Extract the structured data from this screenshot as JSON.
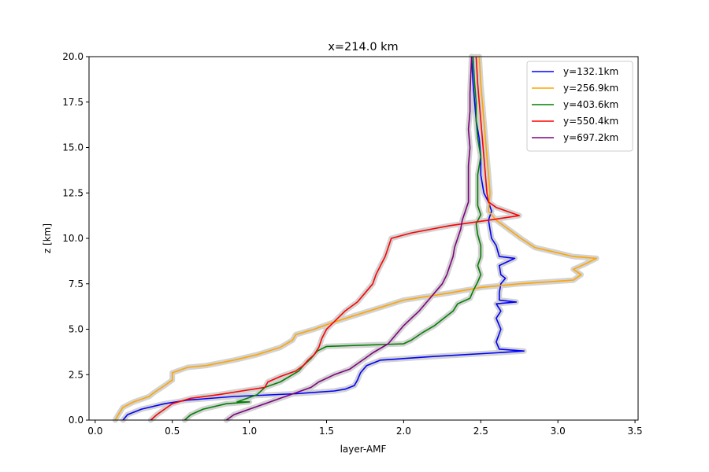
{
  "chart_data": {
    "type": "line",
    "title": "x=214.0 km",
    "xlabel": "layer-AMF",
    "ylabel": "z [km]",
    "xlim": [
      -0.04,
      3.52
    ],
    "ylim": [
      0,
      20
    ],
    "xticks": [
      0.0,
      0.5,
      1.0,
      1.5,
      2.0,
      2.5,
      3.0,
      3.5
    ],
    "xtick_labels": [
      "0.0",
      "0.5",
      "1.0",
      "1.5",
      "2.0",
      "2.5",
      "3.0",
      "3.5"
    ],
    "yticks": [
      0.0,
      2.5,
      5.0,
      7.5,
      10.0,
      12.5,
      15.0,
      17.5,
      20.0
    ],
    "ytick_labels": [
      "0.0",
      "2.5",
      "5.0",
      "7.5",
      "10.0",
      "12.5",
      "15.0",
      "17.5",
      "20.0"
    ],
    "grid": false,
    "legend_position": "top-right",
    "uncertainty_band_color": "#d3d3d3",
    "series": [
      {
        "name": "y=132.1km",
        "color": "#0000ff",
        "points": [
          [
            0.18,
            0.0
          ],
          [
            0.21,
            0.3
          ],
          [
            0.3,
            0.6
          ],
          [
            0.45,
            0.9
          ],
          [
            0.6,
            1.1
          ],
          [
            0.9,
            1.3
          ],
          [
            1.3,
            1.45
          ],
          [
            1.55,
            1.6
          ],
          [
            1.62,
            1.7
          ],
          [
            1.68,
            1.9
          ],
          [
            1.7,
            2.2
          ],
          [
            1.72,
            2.6
          ],
          [
            1.76,
            3.0
          ],
          [
            1.85,
            3.3
          ],
          [
            2.2,
            3.5
          ],
          [
            2.6,
            3.7
          ],
          [
            2.78,
            3.8
          ],
          [
            2.62,
            3.9
          ],
          [
            2.6,
            4.3
          ],
          [
            2.63,
            5.0
          ],
          [
            2.6,
            5.6
          ],
          [
            2.63,
            6.0
          ],
          [
            2.6,
            6.4
          ],
          [
            2.73,
            6.5
          ],
          [
            2.62,
            6.6
          ],
          [
            2.62,
            7.0
          ],
          [
            2.63,
            7.5
          ],
          [
            2.66,
            7.8
          ],
          [
            2.63,
            8.0
          ],
          [
            2.62,
            8.5
          ],
          [
            2.72,
            8.9
          ],
          [
            2.62,
            9.0
          ],
          [
            2.6,
            9.6
          ],
          [
            2.57,
            10.0
          ],
          [
            2.56,
            10.5
          ],
          [
            2.55,
            11.0
          ],
          [
            2.57,
            11.5
          ],
          [
            2.55,
            12.0
          ],
          [
            2.52,
            12.5
          ],
          [
            2.5,
            13.5
          ],
          [
            2.5,
            14.5
          ],
          [
            2.49,
            15.5
          ],
          [
            2.47,
            16.5
          ],
          [
            2.46,
            17.5
          ],
          [
            2.45,
            18.5
          ],
          [
            2.44,
            20.0
          ]
        ]
      },
      {
        "name": "y=256.9km",
        "color": "#ffa500",
        "points": [
          [
            0.13,
            0.0
          ],
          [
            0.15,
            0.3
          ],
          [
            0.18,
            0.7
          ],
          [
            0.25,
            1.0
          ],
          [
            0.35,
            1.3
          ],
          [
            0.38,
            1.5
          ],
          [
            0.45,
            1.9
          ],
          [
            0.5,
            2.2
          ],
          [
            0.5,
            2.6
          ],
          [
            0.6,
            2.9
          ],
          [
            0.72,
            3.0
          ],
          [
            0.9,
            3.3
          ],
          [
            1.05,
            3.6
          ],
          [
            1.2,
            4.0
          ],
          [
            1.28,
            4.4
          ],
          [
            1.3,
            4.7
          ],
          [
            1.42,
            5.0
          ],
          [
            1.55,
            5.4
          ],
          [
            1.7,
            5.8
          ],
          [
            1.85,
            6.2
          ],
          [
            2.0,
            6.6
          ],
          [
            2.3,
            7.0
          ],
          [
            2.5,
            7.3
          ],
          [
            2.75,
            7.5
          ],
          [
            3.1,
            7.7
          ],
          [
            3.15,
            8.0
          ],
          [
            3.1,
            8.3
          ],
          [
            3.18,
            8.6
          ],
          [
            3.25,
            8.9
          ],
          [
            3.1,
            9.0
          ],
          [
            2.95,
            9.3
          ],
          [
            2.85,
            9.5
          ],
          [
            2.76,
            10.0
          ],
          [
            2.68,
            10.5
          ],
          [
            2.6,
            11.0
          ],
          [
            2.55,
            11.5
          ],
          [
            2.56,
            12.5
          ],
          [
            2.55,
            13.5
          ],
          [
            2.54,
            14.5
          ],
          [
            2.53,
            15.5
          ],
          [
            2.52,
            16.5
          ],
          [
            2.51,
            17.5
          ],
          [
            2.5,
            18.5
          ],
          [
            2.49,
            20.0
          ]
        ]
      },
      {
        "name": "y=403.6km",
        "color": "#008000",
        "points": [
          [
            0.58,
            0.0
          ],
          [
            0.62,
            0.3
          ],
          [
            0.7,
            0.6
          ],
          [
            0.85,
            0.9
          ],
          [
            1.0,
            1.0
          ],
          [
            0.92,
            1.0
          ],
          [
            1.05,
            1.4
          ],
          [
            1.1,
            1.8
          ],
          [
            1.2,
            2.1
          ],
          [
            1.26,
            2.4
          ],
          [
            1.32,
            2.7
          ],
          [
            1.35,
            3.0
          ],
          [
            1.4,
            3.4
          ],
          [
            1.44,
            3.8
          ],
          [
            1.5,
            4.05
          ],
          [
            2.0,
            4.2
          ],
          [
            2.05,
            4.4
          ],
          [
            2.12,
            4.8
          ],
          [
            2.2,
            5.2
          ],
          [
            2.26,
            5.6
          ],
          [
            2.32,
            6.0
          ],
          [
            2.35,
            6.4
          ],
          [
            2.43,
            6.7
          ],
          [
            2.45,
            7.1
          ],
          [
            2.48,
            7.6
          ],
          [
            2.5,
            8.0
          ],
          [
            2.48,
            8.5
          ],
          [
            2.5,
            9.0
          ],
          [
            2.5,
            9.6
          ],
          [
            2.48,
            10.2
          ],
          [
            2.47,
            10.8
          ],
          [
            2.5,
            11.3
          ],
          [
            2.48,
            11.8
          ],
          [
            2.48,
            12.5
          ],
          [
            2.48,
            13.5
          ],
          [
            2.5,
            14.5
          ],
          [
            2.48,
            15.5
          ],
          [
            2.47,
            16.5
          ],
          [
            2.47,
            17.5
          ],
          [
            2.46,
            18.5
          ],
          [
            2.45,
            20.0
          ]
        ]
      },
      {
        "name": "y=550.4km",
        "color": "#ff0000",
        "points": [
          [
            0.36,
            0.0
          ],
          [
            0.4,
            0.3
          ],
          [
            0.45,
            0.6
          ],
          [
            0.5,
            0.9
          ],
          [
            0.62,
            1.2
          ],
          [
            0.8,
            1.4
          ],
          [
            0.95,
            1.6
          ],
          [
            1.1,
            1.8
          ],
          [
            1.12,
            2.1
          ],
          [
            1.2,
            2.4
          ],
          [
            1.3,
            2.7
          ],
          [
            1.35,
            3.0
          ],
          [
            1.38,
            3.3
          ],
          [
            1.42,
            3.6
          ],
          [
            1.45,
            4.0
          ],
          [
            1.47,
            4.5
          ],
          [
            1.5,
            5.0
          ],
          [
            1.56,
            5.5
          ],
          [
            1.62,
            6.0
          ],
          [
            1.7,
            6.5
          ],
          [
            1.75,
            7.0
          ],
          [
            1.8,
            7.5
          ],
          [
            1.82,
            8.0
          ],
          [
            1.85,
            8.5
          ],
          [
            1.88,
            9.0
          ],
          [
            1.9,
            9.5
          ],
          [
            1.92,
            10.0
          ],
          [
            2.05,
            10.3
          ],
          [
            2.3,
            10.7
          ],
          [
            2.55,
            11.0
          ],
          [
            2.75,
            11.25
          ],
          [
            2.6,
            11.7
          ],
          [
            2.55,
            12.0
          ],
          [
            2.54,
            12.5
          ],
          [
            2.53,
            13.5
          ],
          [
            2.52,
            14.5
          ],
          [
            2.51,
            15.5
          ],
          [
            2.5,
            16.5
          ],
          [
            2.49,
            17.5
          ],
          [
            2.48,
            18.5
          ],
          [
            2.47,
            20.0
          ]
        ]
      },
      {
        "name": "y=697.2km",
        "color": "#800080",
        "points": [
          [
            0.85,
            0.0
          ],
          [
            0.9,
            0.3
          ],
          [
            1.0,
            0.6
          ],
          [
            1.1,
            0.9
          ],
          [
            1.2,
            1.2
          ],
          [
            1.3,
            1.5
          ],
          [
            1.4,
            1.8
          ],
          [
            1.45,
            2.1
          ],
          [
            1.55,
            2.5
          ],
          [
            1.65,
            2.8
          ],
          [
            1.7,
            3.1
          ],
          [
            1.75,
            3.4
          ],
          [
            1.8,
            3.7
          ],
          [
            1.9,
            4.2
          ],
          [
            1.95,
            4.7
          ],
          [
            2.0,
            5.2
          ],
          [
            2.05,
            5.6
          ],
          [
            2.1,
            6.0
          ],
          [
            2.15,
            6.5
          ],
          [
            2.2,
            7.0
          ],
          [
            2.25,
            7.5
          ],
          [
            2.28,
            8.0
          ],
          [
            2.3,
            8.5
          ],
          [
            2.32,
            9.0
          ],
          [
            2.33,
            9.5
          ],
          [
            2.35,
            10.0
          ],
          [
            2.37,
            10.5
          ],
          [
            2.38,
            11.0
          ],
          [
            2.4,
            11.5
          ],
          [
            2.42,
            12.0
          ],
          [
            2.42,
            13.0
          ],
          [
            2.42,
            14.0
          ],
          [
            2.43,
            15.0
          ],
          [
            2.42,
            16.0
          ],
          [
            2.43,
            17.0
          ],
          [
            2.43,
            18.0
          ],
          [
            2.44,
            20.0
          ]
        ]
      }
    ]
  }
}
